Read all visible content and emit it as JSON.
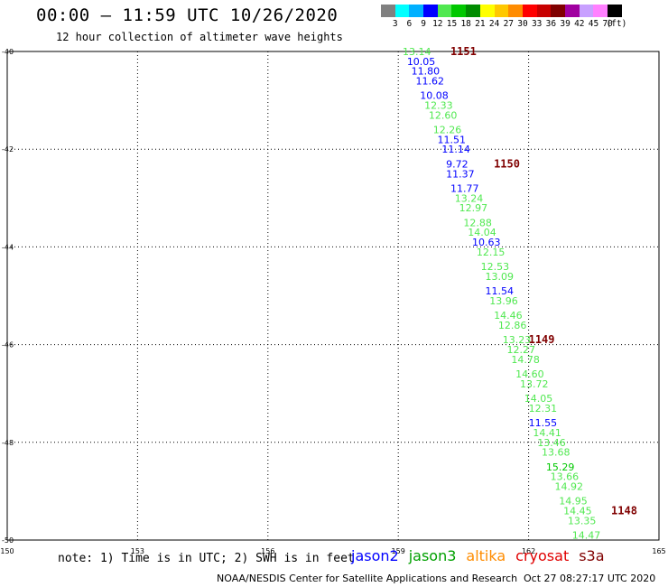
{
  "header": {
    "title": "00:00 – 11:59 UTC 10/26/2020",
    "subtitle": "12 hour collection of altimeter wave heights"
  },
  "legend": {
    "unit_label": "(ft)",
    "bins": [
      {
        "label": "3",
        "color": "#808080"
      },
      {
        "label": "6",
        "color": "#00ffff"
      },
      {
        "label": "9",
        "color": "#00b0ff"
      },
      {
        "label": "12",
        "color": "#0000ff"
      },
      {
        "label": "15",
        "color": "#50e850"
      },
      {
        "label": "18",
        "color": "#00c800"
      },
      {
        "label": "21",
        "color": "#008c00"
      },
      {
        "label": "24",
        "color": "#ffff00"
      },
      {
        "label": "27",
        "color": "#ffc800"
      },
      {
        "label": "30",
        "color": "#ff8c00"
      },
      {
        "label": "33",
        "color": "#ff0000"
      },
      {
        "label": "36",
        "color": "#c80000"
      },
      {
        "label": "39",
        "color": "#800000"
      },
      {
        "label": "42",
        "color": "#a000a0"
      },
      {
        "label": "45",
        "color": "#c8a0ff"
      },
      {
        "label": "70",
        "color": "#ff80ff"
      },
      {
        "label": "",
        "color": "#000000"
      }
    ]
  },
  "chart_data": {
    "type": "scatter",
    "x_axis": {
      "ticks": [
        "150",
        "153",
        "156",
        "159",
        "162",
        "165"
      ],
      "range": [
        150,
        165
      ]
    },
    "y_axis": {
      "ticks": [
        "-40",
        "-42",
        "-44",
        "-46",
        "-48",
        "-50"
      ],
      "range": [
        -50,
        -40
      ]
    },
    "grid": true,
    "points": [
      {
        "x": 159.1,
        "y": -40.0,
        "label": "13.14",
        "color": "#50e850"
      },
      {
        "x": 159.2,
        "y": -40.2,
        "label": "10.05",
        "color": "#0000ff"
      },
      {
        "x": 159.3,
        "y": -40.4,
        "label": "11.80",
        "color": "#0000ff"
      },
      {
        "x": 159.4,
        "y": -40.6,
        "label": "11.62",
        "color": "#0000ff"
      },
      {
        "x": 159.5,
        "y": -40.9,
        "label": "10.08",
        "color": "#0000ff"
      },
      {
        "x": 159.6,
        "y": -41.1,
        "label": "12.33",
        "color": "#50e850"
      },
      {
        "x": 159.7,
        "y": -41.3,
        "label": "12.60",
        "color": "#50e850"
      },
      {
        "x": 159.8,
        "y": -41.6,
        "label": "12.26",
        "color": "#50e850"
      },
      {
        "x": 159.9,
        "y": -41.8,
        "label": "11.51",
        "color": "#0000ff"
      },
      {
        "x": 160.0,
        "y": -42.0,
        "label": "11.14",
        "color": "#0000ff"
      },
      {
        "x": 160.1,
        "y": -42.3,
        "label": "9.72",
        "color": "#0000ff"
      },
      {
        "x": 160.1,
        "y": -42.5,
        "label": "11.37",
        "color": "#0000ff"
      },
      {
        "x": 160.2,
        "y": -42.8,
        "label": "11.77",
        "color": "#0000ff"
      },
      {
        "x": 160.3,
        "y": -43.0,
        "label": "13.24",
        "color": "#50e850"
      },
      {
        "x": 160.4,
        "y": -43.2,
        "label": "12.97",
        "color": "#50e850"
      },
      {
        "x": 160.5,
        "y": -43.5,
        "label": "12.88",
        "color": "#50e850"
      },
      {
        "x": 160.6,
        "y": -43.7,
        "label": "14.04",
        "color": "#50e850"
      },
      {
        "x": 160.7,
        "y": -43.9,
        "label": "10.63",
        "color": "#0000ff"
      },
      {
        "x": 160.8,
        "y": -44.1,
        "label": "12.15",
        "color": "#50e850"
      },
      {
        "x": 160.9,
        "y": -44.4,
        "label": "12.53",
        "color": "#50e850"
      },
      {
        "x": 161.0,
        "y": -44.6,
        "label": "13.09",
        "color": "#50e850"
      },
      {
        "x": 161.0,
        "y": -44.9,
        "label": "11.54",
        "color": "#0000ff"
      },
      {
        "x": 161.1,
        "y": -45.1,
        "label": "13.96",
        "color": "#50e850"
      },
      {
        "x": 161.2,
        "y": -45.4,
        "label": "14.46",
        "color": "#50e850"
      },
      {
        "x": 161.3,
        "y": -45.6,
        "label": "12.86",
        "color": "#50e850"
      },
      {
        "x": 161.4,
        "y": -45.9,
        "label": "13.23",
        "color": "#50e850"
      },
      {
        "x": 161.5,
        "y": -46.1,
        "label": "12.27",
        "color": "#50e850"
      },
      {
        "x": 161.6,
        "y": -46.3,
        "label": "14.78",
        "color": "#50e850"
      },
      {
        "x": 161.7,
        "y": -46.6,
        "label": "14.60",
        "color": "#50e850"
      },
      {
        "x": 161.8,
        "y": -46.8,
        "label": "13.72",
        "color": "#50e850"
      },
      {
        "x": 161.9,
        "y": -47.1,
        "label": "14.05",
        "color": "#50e850"
      },
      {
        "x": 162.0,
        "y": -47.3,
        "label": "12.31",
        "color": "#50e850"
      },
      {
        "x": 162.0,
        "y": -47.6,
        "label": "11.55",
        "color": "#0000ff"
      },
      {
        "x": 162.1,
        "y": -47.8,
        "label": "14.41",
        "color": "#50e850"
      },
      {
        "x": 162.2,
        "y": -48.0,
        "label": "13.46",
        "color": "#50e850"
      },
      {
        "x": 162.3,
        "y": -48.2,
        "label": "13.68",
        "color": "#50e850"
      },
      {
        "x": 162.4,
        "y": -48.5,
        "label": "15.29",
        "color": "#00c800"
      },
      {
        "x": 162.5,
        "y": -48.7,
        "label": "13.66",
        "color": "#50e850"
      },
      {
        "x": 162.6,
        "y": -48.9,
        "label": "14.92",
        "color": "#50e850"
      },
      {
        "x": 162.7,
        "y": -49.2,
        "label": "14.95",
        "color": "#50e850"
      },
      {
        "x": 162.8,
        "y": -49.4,
        "label": "14.45",
        "color": "#50e850"
      },
      {
        "x": 162.9,
        "y": -49.6,
        "label": "13.35",
        "color": "#50e850"
      },
      {
        "x": 163.0,
        "y": -49.9,
        "label": "14.47",
        "color": "#50e850"
      }
    ],
    "time_marks": [
      {
        "x": 160.2,
        "y": -40.0,
        "label": "1151"
      },
      {
        "x": 161.2,
        "y": -42.3,
        "label": "1150"
      },
      {
        "x": 162.0,
        "y": -45.9,
        "label": "1149"
      },
      {
        "x": 163.9,
        "y": -49.4,
        "label": "1148"
      }
    ],
    "time_mark_color": "#800000"
  },
  "footer": {
    "note": "note: 1) Time is in UTC; 2) SWH is in feet",
    "satellites": [
      {
        "name": "jason2",
        "color": "#0000ff"
      },
      {
        "name": "jason3",
        "color": "#00a000"
      },
      {
        "name": "altika",
        "color": "#ff8c00"
      },
      {
        "name": "cryosat",
        "color": "#e00000"
      },
      {
        "name": "s3a",
        "color": "#800000"
      }
    ],
    "credit": "NOAA/NESDIS Center for Satellite Applications and Research",
    "timestamp": "Oct 27 08:27:17 UTC 2020"
  }
}
